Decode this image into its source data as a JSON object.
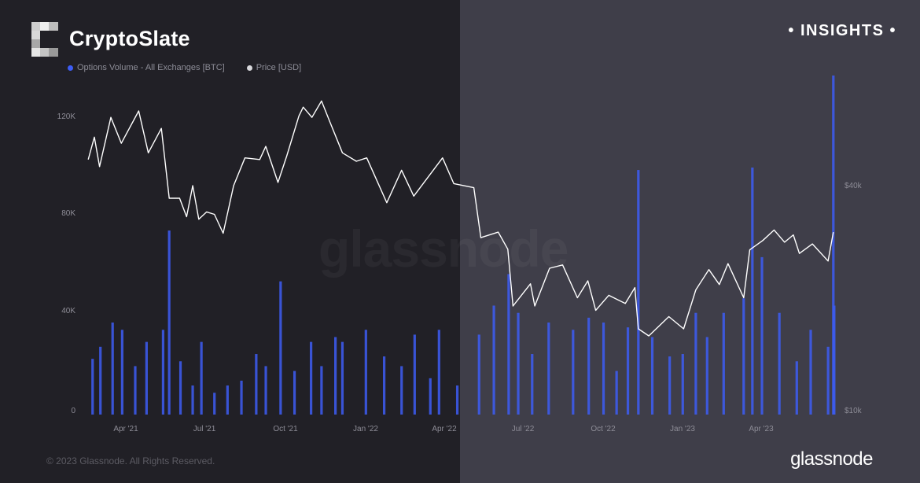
{
  "header": {
    "brand": "CryptoSlate",
    "badge": "• INSIGHTS •"
  },
  "footer": {
    "copyright": "© 2023 Glassnode. All Rights Reserved.",
    "logo_text": "glassnode"
  },
  "watermark": "glassnode",
  "colors": {
    "bar": "#3d5df5",
    "price_line": "#ffffff",
    "left_bg": "#212026",
    "right_bg": "#3f3e49"
  },
  "chart_data": {
    "type": "bar",
    "legend": {
      "placement": "top-left",
      "entries": [
        "Options Volume - All Exchanges [BTC]",
        "Price [USD]"
      ]
    },
    "x_tick_labels": [
      "Apr '21",
      "Jul '21",
      "Oct '21",
      "Jan '22",
      "Apr '22",
      "Jul '22",
      "Oct '22",
      "Jan '23",
      "Apr '23"
    ],
    "left_axis": {
      "ticks": [
        "0",
        "40K",
        "80K",
        "120K"
      ],
      "range": [
        0,
        140000
      ]
    },
    "right_axis": {
      "ticks": [
        "$10k",
        "$40k"
      ],
      "scale": "log"
    },
    "grid": false,
    "series": [
      {
        "name": "Options Volume - All Exchanges [BTC]",
        "type": "bar",
        "points": [
          [
            "2021-02-20",
            23000
          ],
          [
            "2021-03-01",
            28000
          ],
          [
            "2021-03-15",
            38000
          ],
          [
            "2021-03-26",
            35000
          ],
          [
            "2021-04-10",
            20000
          ],
          [
            "2021-04-23",
            30000
          ],
          [
            "2021-05-12",
            35000
          ],
          [
            "2021-05-19",
            76000
          ],
          [
            "2021-06-01",
            22000
          ],
          [
            "2021-06-15",
            12000
          ],
          [
            "2021-06-25",
            30000
          ],
          [
            "2021-07-10",
            9000
          ],
          [
            "2021-07-25",
            12000
          ],
          [
            "2021-08-10",
            14000
          ],
          [
            "2021-08-27",
            25000
          ],
          [
            "2021-09-07",
            20000
          ],
          [
            "2021-09-24",
            55000
          ],
          [
            "2021-10-10",
            18000
          ],
          [
            "2021-10-29",
            30000
          ],
          [
            "2021-11-10",
            20000
          ],
          [
            "2021-11-26",
            32000
          ],
          [
            "2021-12-04",
            30000
          ],
          [
            "2021-12-31",
            35000
          ],
          [
            "2022-01-21",
            24000
          ],
          [
            "2022-02-10",
            20000
          ],
          [
            "2022-02-25",
            33000
          ],
          [
            "2022-03-15",
            15000
          ],
          [
            "2022-03-25",
            35000
          ],
          [
            "2022-04-15",
            12000
          ],
          [
            "2022-05-10",
            33000
          ],
          [
            "2022-05-27",
            45000
          ],
          [
            "2022-06-13",
            58000
          ],
          [
            "2022-06-24",
            42000
          ],
          [
            "2022-07-10",
            25000
          ],
          [
            "2022-07-29",
            38000
          ],
          [
            "2022-08-26",
            35000
          ],
          [
            "2022-09-13",
            40000
          ],
          [
            "2022-09-30",
            38000
          ],
          [
            "2022-10-15",
            18000
          ],
          [
            "2022-10-28",
            36000
          ],
          [
            "2022-11-09",
            101000
          ],
          [
            "2022-11-25",
            32000
          ],
          [
            "2022-12-15",
            24000
          ],
          [
            "2022-12-30",
            25000
          ],
          [
            "2023-01-14",
            42000
          ],
          [
            "2023-01-27",
            32000
          ],
          [
            "2023-02-15",
            42000
          ],
          [
            "2023-03-10",
            48000
          ],
          [
            "2023-03-20",
            102000
          ],
          [
            "2023-03-31",
            65000
          ],
          [
            "2023-04-20",
            42000
          ],
          [
            "2023-05-10",
            22000
          ],
          [
            "2023-05-26",
            35000
          ],
          [
            "2023-06-15",
            28000
          ],
          [
            "2023-06-21",
            140000
          ],
          [
            "2023-06-22",
            45000
          ]
        ]
      },
      {
        "name": "Price [USD]",
        "type": "line",
        "points": [
          [
            "2021-02-15",
            47000
          ],
          [
            "2021-02-22",
            54000
          ],
          [
            "2021-02-28",
            45000
          ],
          [
            "2021-03-13",
            61000
          ],
          [
            "2021-03-25",
            52000
          ],
          [
            "2021-04-14",
            63500
          ],
          [
            "2021-04-25",
            49000
          ],
          [
            "2021-05-10",
            57000
          ],
          [
            "2021-05-19",
            37000
          ],
          [
            "2021-05-31",
            37000
          ],
          [
            "2021-06-08",
            33000
          ],
          [
            "2021-06-15",
            40000
          ],
          [
            "2021-06-22",
            32500
          ],
          [
            "2021-07-01",
            34000
          ],
          [
            "2021-07-10",
            33500
          ],
          [
            "2021-07-20",
            29800
          ],
          [
            "2021-08-01",
            40000
          ],
          [
            "2021-08-14",
            47500
          ],
          [
            "2021-08-31",
            47000
          ],
          [
            "2021-09-07",
            51000
          ],
          [
            "2021-09-21",
            40800
          ],
          [
            "2021-10-01",
            48000
          ],
          [
            "2021-10-15",
            61500
          ],
          [
            "2021-10-20",
            65000
          ],
          [
            "2021-10-30",
            61000
          ],
          [
            "2021-11-10",
            67500
          ],
          [
            "2021-11-20",
            59000
          ],
          [
            "2021-12-04",
            49000
          ],
          [
            "2021-12-20",
            46500
          ],
          [
            "2022-01-01",
            47500
          ],
          [
            "2022-01-24",
            36000
          ],
          [
            "2022-02-10",
            44000
          ],
          [
            "2022-02-24",
            37500
          ],
          [
            "2022-03-29",
            47500
          ],
          [
            "2022-04-11",
            40500
          ],
          [
            "2022-05-04",
            39500
          ],
          [
            "2022-05-12",
            29000
          ],
          [
            "2022-06-01",
            30000
          ],
          [
            "2022-06-12",
            27000
          ],
          [
            "2022-06-18",
            19000
          ],
          [
            "2022-07-08",
            21800
          ],
          [
            "2022-07-13",
            19000
          ],
          [
            "2022-07-30",
            24000
          ],
          [
            "2022-08-14",
            24500
          ],
          [
            "2022-08-31",
            20000
          ],
          [
            "2022-09-12",
            22200
          ],
          [
            "2022-09-21",
            18500
          ],
          [
            "2022-10-06",
            20300
          ],
          [
            "2022-10-25",
            19300
          ],
          [
            "2022-11-05",
            21300
          ],
          [
            "2022-11-09",
            16500
          ],
          [
            "2022-11-21",
            15800
          ],
          [
            "2022-12-14",
            17800
          ],
          [
            "2022-12-31",
            16500
          ],
          [
            "2023-01-14",
            21000
          ],
          [
            "2023-01-29",
            23800
          ],
          [
            "2023-02-10",
            21700
          ],
          [
            "2023-02-20",
            24700
          ],
          [
            "2023-03-10",
            20000
          ],
          [
            "2023-03-17",
            26900
          ],
          [
            "2023-04-01",
            28500
          ],
          [
            "2023-04-14",
            30400
          ],
          [
            "2023-04-26",
            28200
          ],
          [
            "2023-05-06",
            29500
          ],
          [
            "2023-05-13",
            26300
          ],
          [
            "2023-05-28",
            27900
          ],
          [
            "2023-06-15",
            25100
          ],
          [
            "2023-06-21",
            30000
          ]
        ]
      }
    ]
  }
}
